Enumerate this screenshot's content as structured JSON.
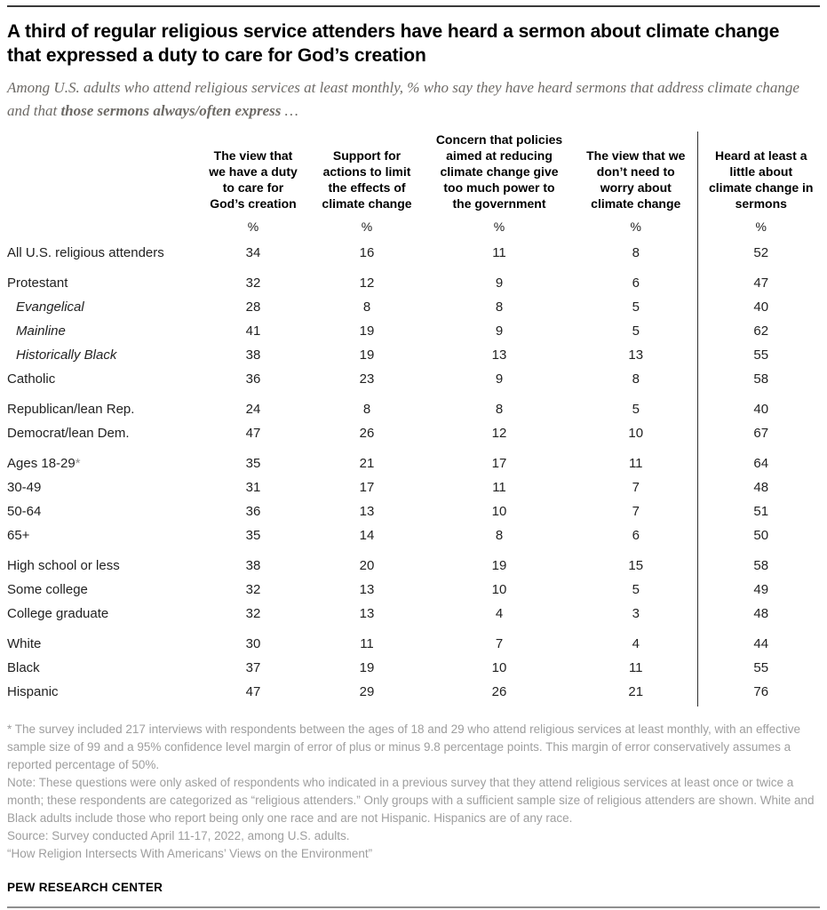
{
  "chart_data": {
    "type": "table",
    "title": "A third of regular religious service attenders have heard a sermon about climate change that expressed a duty to care for God’s creation",
    "subtitle": {
      "prefix": "Among U.S. adults who attend religious services at least monthly, % who say they have heard sermons that address climate change and that ",
      "bold": "those sermons always/often express",
      "suffix": " …"
    },
    "unit": "%",
    "columns": [
      "The view that\nwe have a duty\nto care for\nGod’s creation",
      "Support for\nactions to limit\nthe effects of\nclimate change",
      "Concern that policies\naimed at reducing\nclimate change give\ntoo much power to\nthe government",
      "The view that we\ndon’t need to\nworry about\nclimate change",
      "Heard at least a\nlittle about\nclimate change in\nsermons"
    ],
    "rows": [
      {
        "label": "All U.S. religious attenders",
        "values": [
          34,
          16,
          11,
          8,
          52
        ],
        "italic": false,
        "group_start": false
      },
      {
        "label": "Protestant",
        "values": [
          32,
          12,
          9,
          6,
          47
        ],
        "italic": false,
        "group_start": true
      },
      {
        "label": "Evangelical",
        "values": [
          28,
          8,
          8,
          5,
          40
        ],
        "italic": true,
        "group_start": false
      },
      {
        "label": "Mainline",
        "values": [
          41,
          19,
          9,
          5,
          62
        ],
        "italic": true,
        "group_start": false
      },
      {
        "label": "Historically Black",
        "values": [
          38,
          19,
          13,
          13,
          55
        ],
        "italic": true,
        "group_start": false
      },
      {
        "label": "Catholic",
        "values": [
          36,
          23,
          9,
          8,
          58
        ],
        "italic": false,
        "group_start": false
      },
      {
        "label": "Republican/lean Rep.",
        "values": [
          24,
          8,
          8,
          5,
          40
        ],
        "italic": false,
        "group_start": true
      },
      {
        "label": "Democrat/lean Dem.",
        "values": [
          47,
          26,
          12,
          10,
          67
        ],
        "italic": false,
        "group_start": false
      },
      {
        "label": "Ages 18-29*",
        "values": [
          35,
          21,
          17,
          11,
          64
        ],
        "italic": false,
        "group_start": true
      },
      {
        "label": "30-49",
        "values": [
          31,
          17,
          11,
          7,
          48
        ],
        "italic": false,
        "group_start": false
      },
      {
        "label": "50-64",
        "values": [
          36,
          13,
          10,
          7,
          51
        ],
        "italic": false,
        "group_start": false
      },
      {
        "label": "65+",
        "values": [
          35,
          14,
          8,
          6,
          50
        ],
        "italic": false,
        "group_start": false
      },
      {
        "label": "High school or less",
        "values": [
          38,
          20,
          19,
          15,
          58
        ],
        "italic": false,
        "group_start": true
      },
      {
        "label": "Some college",
        "values": [
          32,
          13,
          10,
          5,
          49
        ],
        "italic": false,
        "group_start": false
      },
      {
        "label": "College graduate",
        "values": [
          32,
          13,
          4,
          3,
          48
        ],
        "italic": false,
        "group_start": false
      },
      {
        "label": "White",
        "values": [
          30,
          11,
          7,
          4,
          44
        ],
        "italic": false,
        "group_start": true
      },
      {
        "label": "Black",
        "values": [
          37,
          19,
          10,
          11,
          55
        ],
        "italic": false,
        "group_start": false
      },
      {
        "label": "Hispanic",
        "values": [
          47,
          29,
          26,
          21,
          76
        ],
        "italic": false,
        "group_start": false
      }
    ]
  },
  "footnotes": {
    "asterisk": "* The survey included 217 interviews with respondents between the ages of 18 and 29 who attend religious services at least monthly, with an effective sample size of 99 and a 95% confidence level margin of error of plus or minus 9.8 percentage points. This margin of error conservatively assumes a reported percentage of 50%.",
    "note": "Note: These questions were only asked of respondents who indicated in a previous survey that they attend religious services at least once or twice a month; these respondents are categorized as “religious attenders.” Only groups with a sufficient sample size of religious attenders are shown. White and Black adults include those who report being only one race and are not Hispanic. Hispanics are of any race.",
    "source": "Source: Survey conducted April 11-17, 2022, among U.S. adults.",
    "citation": "“How Religion Intersects With Americans’ Views on the Environment”"
  },
  "footer": {
    "brand": "PEW RESEARCH CENTER"
  },
  "colors": {
    "title": "#000000",
    "subtitle_gray": "#6d6a66",
    "footnote_gray": "#9e9e9e",
    "rule_dark": "#3a3a3a",
    "divider": "#2f2f2f"
  }
}
